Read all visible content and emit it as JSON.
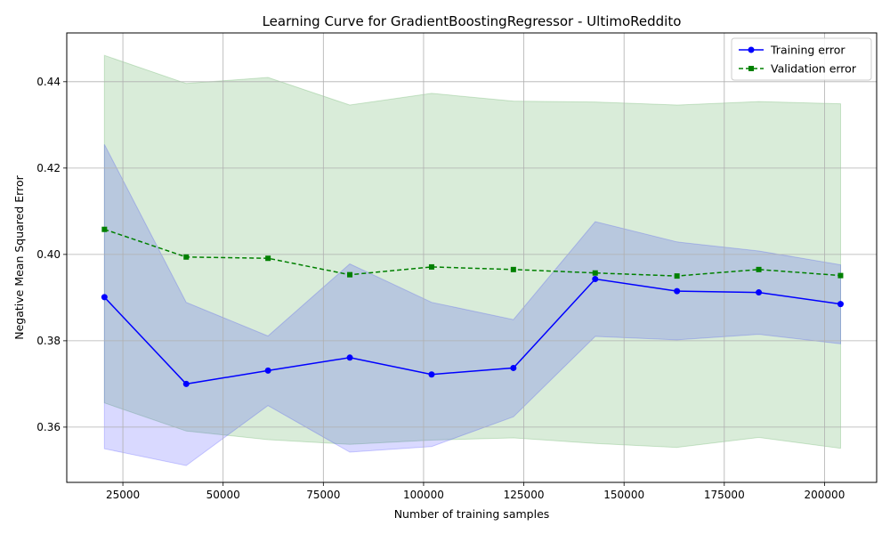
{
  "chart_data": {
    "type": "line",
    "title": "Learning Curve for GradientBoostingRegressor - UltimoReddito",
    "xlabel": "Number of training samples",
    "ylabel": "Negative Mean Squared Error",
    "xlim": [
      11000,
      213000
    ],
    "ylim": [
      0.3472,
      0.4513
    ],
    "xticks": [
      25000,
      50000,
      75000,
      100000,
      125000,
      150000,
      175000,
      200000
    ],
    "xtick_labels": [
      "25000",
      "50000",
      "75000",
      "100000",
      "125000",
      "150000",
      "175000",
      "200000"
    ],
    "yticks": [
      0.36,
      0.38,
      0.4,
      0.42,
      0.44
    ],
    "ytick_labels": [
      "0.36",
      "0.38",
      "0.40",
      "0.42",
      "0.44"
    ],
    "grid": true,
    "legend_position": "top-right",
    "x": [
      20400,
      40800,
      61200,
      81600,
      102000,
      122400,
      142800,
      163200,
      183600,
      204000
    ],
    "series": [
      {
        "name": "Training error",
        "color": "#0000ff",
        "linestyle": "solid",
        "marker": "circle",
        "values": [
          0.3901,
          0.37,
          0.3731,
          0.3761,
          0.3722,
          0.3737,
          0.3943,
          0.3915,
          0.3912,
          0.3885
        ],
        "band_upper": [
          0.4255,
          0.3889,
          0.3811,
          0.3978,
          0.3889,
          0.3849,
          0.4076,
          0.4029,
          0.4008,
          0.3976
        ],
        "band_lower": [
          0.355,
          0.3511,
          0.365,
          0.3542,
          0.3555,
          0.3624,
          0.381,
          0.3802,
          0.3815,
          0.3793
        ],
        "band_color": "#0000ff"
      },
      {
        "name": "Validation error",
        "color": "#008000",
        "linestyle": "dashed",
        "marker": "square",
        "values": [
          0.4058,
          0.3994,
          0.3991,
          0.3953,
          0.3971,
          0.3965,
          0.3957,
          0.395,
          0.3965,
          0.3951
        ],
        "band_upper": [
          0.4461,
          0.4396,
          0.441,
          0.4346,
          0.4373,
          0.4355,
          0.4353,
          0.4346,
          0.4354,
          0.4349
        ],
        "band_lower": [
          0.3656,
          0.3591,
          0.3571,
          0.356,
          0.357,
          0.3575,
          0.3562,
          0.3553,
          0.3576,
          0.3551
        ],
        "band_color": "#008000"
      }
    ]
  }
}
